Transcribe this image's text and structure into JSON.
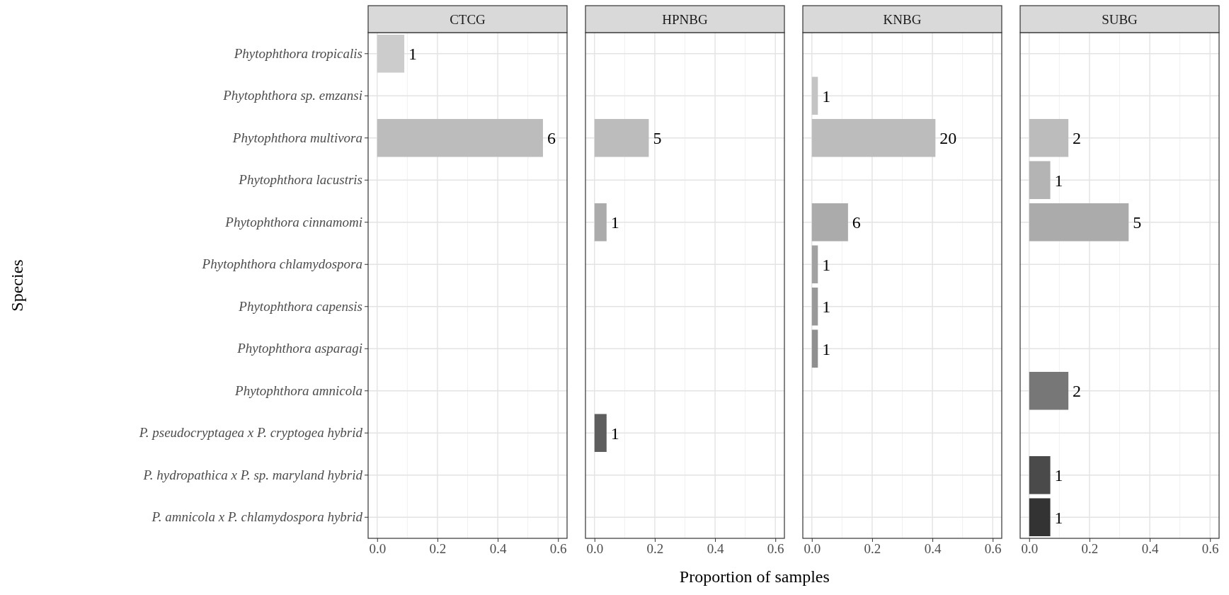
{
  "chart_data": [
    {
      "type": "bar",
      "orientation": "horizontal",
      "title": "CTCG",
      "ylabel": "Species",
      "grid": true,
      "categories": [
        "Phytophthora tropicalis",
        "Phytophthora sp. emzansi",
        "Phytophthora multivora",
        "Phytophthora lacustris",
        "Phytophthora cinnamomi",
        "Phytophthora chlamydospora",
        "Phytophthora capensis",
        "Phytophthora asparagi",
        "Phytophthora amnicola",
        "P. pseudocryptagea x P. cryptogea hybrid",
        "P. hydropathica x P. sp. maryland hybrid",
        "P. amnicola x P. chlamydospora hybrid"
      ],
      "values": [
        0.09,
        null,
        0.55,
        null,
        null,
        null,
        null,
        null,
        null,
        null,
        null,
        null
      ],
      "colors": [
        "#cccccc",
        null,
        "#bcbcbc",
        null,
        null,
        null,
        null,
        null,
        null,
        null,
        null,
        null
      ],
      "annotations": [
        {
          "text": "1",
          "x": 0.09,
          "y": "Phytophthora tropicalis"
        },
        {
          "text": "6",
          "x": 0.55,
          "y": "Phytophthora multivora"
        }
      ],
      "xlim": [
        -0.03,
        0.63
      ],
      "xticks": [
        {
          "value": 0,
          "label": "0.0"
        },
        {
          "value": 0.2,
          "label": "0.2"
        },
        {
          "value": 0.4,
          "label": "0.4"
        },
        {
          "value": 0.6,
          "label": "0.6"
        }
      ]
    },
    {
      "type": "bar",
      "orientation": "horizontal",
      "title": "HPNBG",
      "xlabel": "Proportion of samples",
      "grid": true,
      "tick_labels": "x",
      "categories": [
        "Phytophthora tropicalis",
        "Phytophthora sp. emzansi",
        "Phytophthora multivora",
        "Phytophthora lacustris",
        "Phytophthora cinnamomi",
        "Phytophthora chlamydospora",
        "Phytophthora capensis",
        "Phytophthora asparagi",
        "Phytophthora amnicola",
        "P. pseudocryptagea x P. cryptogea hybrid",
        "P. hydropathica x P. sp. maryland hybrid",
        "P. amnicola x P. chlamydospora hybrid"
      ],
      "values": [
        null,
        null,
        0.18,
        null,
        0.04,
        null,
        null,
        null,
        null,
        0.04,
        null,
        null
      ],
      "colors": [
        null,
        null,
        "#bcbcbc",
        null,
        "#ababab",
        null,
        null,
        null,
        null,
        "#5e5e5e",
        null,
        null
      ],
      "annotations": [
        {
          "text": "5",
          "x": 0.18,
          "y": "Phytophthora multivora"
        },
        {
          "text": "1",
          "x": 0.04,
          "y": "Phytophthora cinnamomi"
        },
        {
          "text": "1",
          "x": 0.04,
          "y": "P. pseudocryptagea x P. cryptogea hybrid"
        }
      ],
      "xlim": [
        -0.03,
        0.63
      ],
      "xticks": [
        {
          "value": 0,
          "label": "0.0"
        },
        {
          "value": 0.2,
          "label": "0.2"
        },
        {
          "value": 0.4,
          "label": "0.4"
        },
        {
          "value": 0.6,
          "label": "0.6"
        }
      ]
    },
    {
      "type": "bar",
      "orientation": "horizontal",
      "title": "KNBG",
      "grid": true,
      "tick_labels": "x",
      "categories": [
        "Phytophthora tropicalis",
        "Phytophthora sp. emzansi",
        "Phytophthora multivora",
        "Phytophthora lacustris",
        "Phytophthora cinnamomi",
        "Phytophthora chlamydospora",
        "Phytophthora capensis",
        "Phytophthora asparagi",
        "Phytophthora amnicola",
        "P. pseudocryptagea x P. cryptogea hybrid",
        "P. hydropathica x P. sp. maryland hybrid",
        "P. amnicola x P. chlamydospora hybrid"
      ],
      "values": [
        null,
        0.02,
        0.41,
        null,
        0.12,
        0.02,
        0.02,
        0.02,
        null,
        null,
        null,
        null
      ],
      "colors": [
        null,
        "#c4c4c4",
        "#bcbcbc",
        null,
        "#ababab",
        "#a2a2a2",
        "#999999",
        "#8f8f8f",
        null,
        null,
        null,
        null
      ],
      "annotations": [
        {
          "text": "1",
          "x": 0.02,
          "y": "Phytophthora sp. emzansi"
        },
        {
          "text": "20",
          "x": 0.41,
          "y": "Phytophthora multivora"
        },
        {
          "text": "6",
          "x": 0.12,
          "y": "Phytophthora cinnamomi"
        },
        {
          "text": "1",
          "x": 0.02,
          "y": "Phytophthora chlamydospora"
        },
        {
          "text": "1",
          "x": 0.02,
          "y": "Phytophthora capensis"
        },
        {
          "text": "1",
          "x": 0.02,
          "y": "Phytophthora asparagi"
        }
      ],
      "xlim": [
        -0.03,
        0.63
      ],
      "xticks": [
        {
          "value": 0,
          "label": "0.0"
        },
        {
          "value": 0.2,
          "label": "0.2"
        },
        {
          "value": 0.4,
          "label": "0.4"
        },
        {
          "value": 0.6,
          "label": "0.6"
        }
      ]
    },
    {
      "type": "bar",
      "orientation": "horizontal",
      "title": "SUBG",
      "grid": true,
      "tick_labels": "x",
      "categories": [
        "Phytophthora tropicalis",
        "Phytophthora sp. emzansi",
        "Phytophthora multivora",
        "Phytophthora lacustris",
        "Phytophthora cinnamomi",
        "Phytophthora chlamydospora",
        "Phytophthora capensis",
        "Phytophthora asparagi",
        "Phytophthora amnicola",
        "P. pseudocryptagea x P. cryptogea hybrid",
        "P. hydropathica x P. sp. maryland hybrid",
        "P. amnicola x P. chlamydospora hybrid"
      ],
      "values": [
        null,
        null,
        0.13,
        0.07,
        0.33,
        null,
        null,
        null,
        0.13,
        null,
        0.07,
        0.07
      ],
      "colors": [
        null,
        null,
        "#bcbcbc",
        "#b4b4b4",
        "#ababab",
        null,
        null,
        null,
        "#777777",
        null,
        "#4a4a4a",
        "#333333"
      ],
      "annotations": [
        {
          "text": "2",
          "x": 0.13,
          "y": "Phytophthora multivora"
        },
        {
          "text": "1",
          "x": 0.07,
          "y": "Phytophthora lacustris"
        },
        {
          "text": "5",
          "x": 0.33,
          "y": "Phytophthora cinnamomi"
        },
        {
          "text": "2",
          "x": 0.13,
          "y": "Phytophthora amnicola"
        },
        {
          "text": "1",
          "x": 0.07,
          "y": "P. hydropathica x P. sp. maryland hybrid"
        },
        {
          "text": "1",
          "x": 0.07,
          "y": "P. amnicola x P. chlamydospora hybrid"
        }
      ],
      "xlim": [
        -0.03,
        0.63
      ],
      "xticks": [
        {
          "value": 0,
          "label": "0.0"
        },
        {
          "value": 0.2,
          "label": "0.2"
        },
        {
          "value": 0.4,
          "label": "0.4"
        },
        {
          "value": 0.6,
          "label": "0.6"
        }
      ]
    }
  ]
}
